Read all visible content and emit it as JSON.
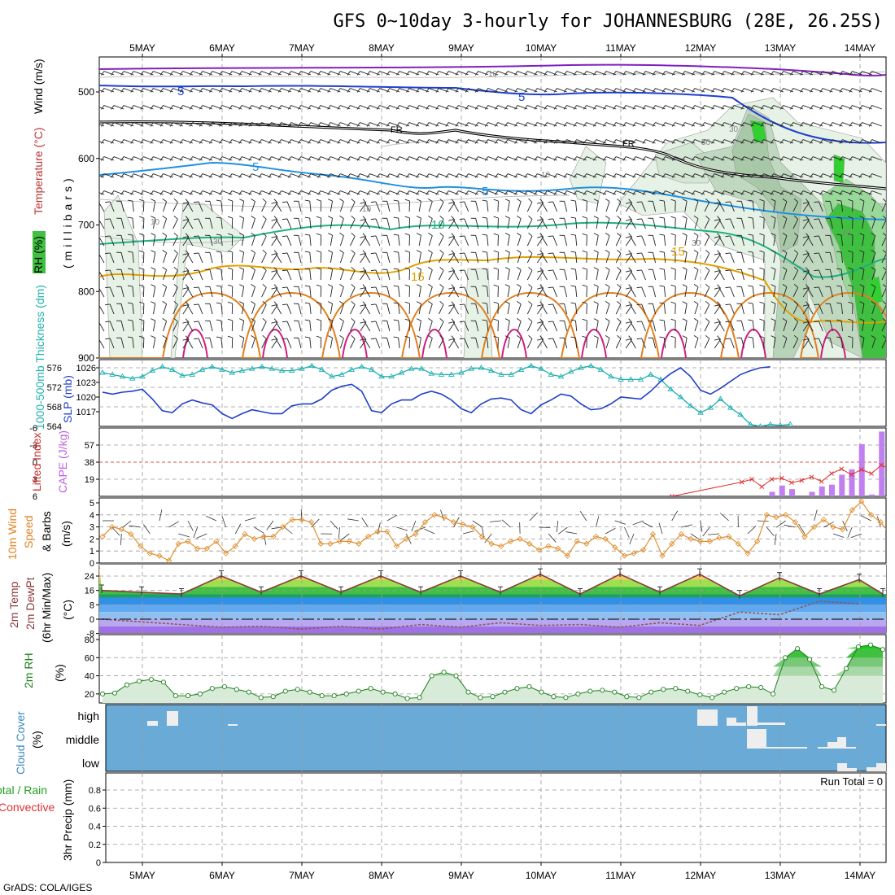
{
  "title": "GFS 0~10day 3-hourly for JOHANNESBURG (28E, 26.25S)",
  "credit": "GrADS: COLA/IGES",
  "days": [
    "5MAY",
    "6MAY",
    "7MAY",
    "8MAY",
    "9MAY",
    "10MAY",
    "11MAY",
    "12MAY",
    "13MAY",
    "14MAY"
  ],
  "panels": {
    "upper_air": {
      "labels": [
        "RH (%)",
        "Temperature (°C)",
        "Wind (m/s)",
        "(millibars)"
      ],
      "yticks": [
        "500",
        "600",
        "700",
        "800",
        "900"
      ]
    },
    "pressure": {
      "labels": [
        "1000-500mb Thickness (dm)",
        "SLP (mb)"
      ],
      "thickness_ticks": [
        "576",
        "572",
        "568",
        "564"
      ],
      "slp_ticks": [
        "1026",
        "1023",
        "1020",
        "1017"
      ]
    },
    "stability": {
      "labels": [
        "Lifted Index",
        "CAPE (J/kg)"
      ],
      "li_ticks": [
        "-6",
        "-3",
        "0",
        "3",
        "6"
      ],
      "cape_ticks": [
        "57",
        "38",
        "19"
      ]
    },
    "wind10m": {
      "labels": [
        "10m Wind",
        "Speed",
        "& Barbs",
        "(m/s)"
      ],
      "yticks": [
        "5",
        "4",
        "3",
        "2",
        "1",
        "0"
      ]
    },
    "temp2m": {
      "labels": [
        "2m Temp",
        "2m DewPt",
        "(6hr Min/Max)",
        "(°C)"
      ],
      "yticks": [
        "24",
        "16",
        "8",
        "0",
        "-8"
      ]
    },
    "rh2m": {
      "labels": [
        "2m RH",
        "(%)"
      ],
      "yticks": [
        "80",
        "60",
        "40",
        "20"
      ]
    },
    "cloud": {
      "labels": [
        "Cloud Cover",
        "(%)"
      ],
      "yticks": [
        "high",
        "middle",
        "low"
      ]
    },
    "precip": {
      "labels": [
        "Total / Rain",
        "Convective",
        "3hr Precip (mm)"
      ],
      "yticks": [
        "0.8",
        "0.6",
        "0.4",
        "0.2",
        "0"
      ],
      "run_total": "Run Total = 0"
    }
  },
  "colors": {
    "thickness": "#20b0b0",
    "slp": "#2040c8",
    "wind": "#e09030",
    "temp_line": "#8b3a3a",
    "dewpt_line": "#8b5a5a",
    "rh_line": "#208020",
    "rh_fill": "#98d098",
    "cloud_bg": "#6aaad6",
    "cape_bar": "#c080f0",
    "li_line": "#e03030",
    "precip_total": "#20c020",
    "precip_conv": "#e03030",
    "t_minus5": "#e0a000",
    "t_15": "#e08020",
    "t_pos": "#d02080",
    "wind5": "#2040d0",
    "t10": "#20b080",
    "t5": "#2090e0",
    "fr": "#000000",
    "t_high": "#8020c0"
  },
  "contour_labels": {
    "upper_wind_5": "5",
    "t5": "5",
    "t10": "10",
    "t15": "15",
    "freeze": "FR",
    "rh10": "10",
    "rh30": "30",
    "rh50": "50",
    "rh70": "70"
  },
  "chart_data": [
    {
      "type": "line",
      "title": "1000-500mb Thickness (dm) / SLP (mb)",
      "x_unit": "3-hourly steps from 5MAY 00Z",
      "series": [
        {
          "name": "1000-500mb Thickness (dm)",
          "values": [
            575,
            574.6,
            574.2,
            573.8,
            574.2,
            575.4,
            576.2,
            575.6,
            574.4,
            574.6,
            575.6,
            576.2,
            575.6,
            575,
            575.4,
            575.8,
            576.2,
            575.8,
            575.4,
            575.4,
            575.8,
            576.4,
            575.6,
            574.2,
            574.6,
            575.6,
            576.2,
            575.6,
            574.2,
            574.2,
            575,
            575.8,
            575.8,
            574.8,
            574.6,
            574.6,
            575,
            575.8,
            576,
            575.4,
            574.6,
            574.6,
            575.6,
            576.4,
            575.8,
            574.6,
            574.2,
            575.2,
            576,
            576.4,
            575.6,
            574.2,
            573.6,
            573.6,
            573.6,
            574.6,
            573.6,
            571.6,
            570,
            568.2,
            566.8,
            567.8,
            569.6,
            567.8,
            566.4,
            564.4,
            564,
            564.4,
            564.2,
            564.4
          ]
        },
        {
          "name": "SLP (mb)",
          "values": [
            1021,
            1020.6,
            1021,
            1021.2,
            1021.6,
            1019.6,
            1017.2,
            1016.8,
            1018.6,
            1019.4,
            1018.8,
            1018.4,
            1016.6,
            1015.6,
            1016.6,
            1017.4,
            1017,
            1016.6,
            1016.6,
            1018.2,
            1018.6,
            1018.6,
            1019.6,
            1021.4,
            1022.2,
            1022.6,
            1021.2,
            1017.2,
            1016.8,
            1018.6,
            1019.4,
            1019.4,
            1020.6,
            1021.2,
            1020.6,
            1019.4,
            1017.6,
            1016.8,
            1018.6,
            1019.6,
            1019.8,
            1019.4,
            1017.4,
            1016.6,
            1018.4,
            1019.4,
            1020.6,
            1020.2,
            1018.6,
            1017.4,
            1017.6,
            1018.6,
            1020,
            1019.8,
            1019.6,
            1021.2,
            1023.2,
            1024.8,
            1026,
            1024.2,
            1021.4,
            1020.6,
            1021.8,
            1023.2,
            1024.6,
            1025.4,
            1026,
            1026.2
          ]
        }
      ],
      "y_ranges": {
        "thickness": [
          564,
          577
        ],
        "slp": [
          1014,
          1027
        ]
      }
    },
    {
      "type": "bar",
      "title": "Lifted Index / CAPE (J/kg)",
      "series": [
        {
          "name": "CAPE (J/kg)",
          "values_by_step": {
            "66": 5,
            "67": 12,
            "68": 8,
            "70": 5,
            "71": 11,
            "72": 13,
            "73": 24,
            "74": 30,
            "75": 58,
            "76": 2,
            "77": 72,
            "78": 11,
            "79": 6
          }
        },
        {
          "name": "Lifted Index",
          "values_by_step": {
            "56": 6,
            "63": 3.5,
            "64": 3,
            "65": 4.3,
            "66": 3,
            "67": 2.8,
            "68": 3.6,
            "69": 3.2,
            "70": 2.6,
            "71": 3.4,
            "72": 2,
            "73": 1.2,
            "74": 2.2,
            "75": 1.3,
            "76": 2,
            "77": 0.5,
            "78": 1.4,
            "79": 0.6
          }
        }
      ],
      "cape_ylim": [
        0,
        76
      ],
      "li_ylim": [
        6,
        -6
      ]
    },
    {
      "type": "line",
      "title": "10m Wind Speed & Barbs (m/s)",
      "ylim": [
        0,
        5
      ],
      "series": [
        {
          "name": "10m Wind Speed",
          "values": [
            2.2,
            3,
            2.8,
            2.4,
            1.4,
            0.8,
            0.6,
            0.2,
            1.6,
            1.8,
            1.2,
            1.2,
            1.8,
            0.8,
            1.4,
            2.4,
            2,
            2.2,
            2.2,
            3,
            3.6,
            3.6,
            3.4,
            1.6,
            1.6,
            1.8,
            1.8,
            1.6,
            2.2,
            2.6,
            2.6,
            1.4,
            2,
            2.4,
            3.4,
            4,
            3.8,
            3.4,
            3.2,
            3,
            2.2,
            1.6,
            1.4,
            1.8,
            2,
            1.6,
            1.1,
            1.4,
            1.2,
            0.6,
            1.8,
            1.6,
            2.2,
            2,
            1.3,
            0.6,
            0.8,
            1.1,
            2.4,
            0.6,
            1.6,
            2.4,
            2,
            1.8,
            1.8,
            2.1,
            2.2,
            1.6,
            0.8,
            1.8,
            4,
            3.8,
            4,
            3.4,
            2.2,
            3,
            3.6,
            3,
            2.8,
            4.4,
            5.1,
            4,
            3.4,
            2.4
          ]
        }
      ]
    },
    {
      "type": "area",
      "title": "2m Temp / 2m DewPt (6hr Min/Max) (°C)",
      "ylim": [
        -9,
        28
      ],
      "series": [
        {
          "name": "2m Temp (daily max)",
          "values": [
            15,
            24,
            24,
            24,
            24,
            25,
            25,
            25,
            23,
            22
          ]
        },
        {
          "name": "2m Temp (daily min)",
          "values": [
            16,
            14,
            15,
            15,
            15,
            15,
            14,
            15,
            13,
            14
          ]
        },
        {
          "name": "2m DewPt",
          "values": [
            0,
            -3,
            -4,
            -4,
            -3,
            -2,
            -3,
            -2,
            4,
            10
          ]
        }
      ]
    },
    {
      "type": "area",
      "title": "2m RH (%)",
      "ylim": [
        10,
        80
      ],
      "series": [
        {
          "name": "2m RH",
          "values": [
            20,
            21,
            30,
            34,
            36,
            33,
            18,
            18,
            20,
            26,
            28,
            25,
            22,
            16,
            17,
            23,
            25,
            22,
            18,
            18,
            20,
            23,
            26,
            22,
            20,
            15,
            16,
            40,
            44,
            40,
            22,
            16,
            17,
            22,
            26,
            28,
            22,
            17,
            16,
            20,
            23,
            24,
            22,
            17,
            16,
            22,
            25,
            26,
            23,
            19,
            16,
            22,
            26,
            28,
            27,
            20,
            60,
            70,
            58,
            28,
            24,
            48,
            72,
            74,
            69
          ]
        }
      ]
    },
    {
      "type": "bar",
      "title": "Cloud Cover (%)",
      "series": [
        {
          "name": "high",
          "values_by_day": {
            "5MAY": "low",
            "12MAY": "high",
            "13MAY": "medium",
            "14MAY": "low"
          }
        },
        {
          "name": "middle",
          "values_by_day": {
            "12MAY": "medium",
            "13MAY": "medium",
            "14MAY": "low"
          }
        },
        {
          "name": "low",
          "values_by_day": {
            "14MAY": "low"
          }
        }
      ]
    },
    {
      "type": "bar",
      "title": "3hr Precip (mm)",
      "ylim": [
        0,
        0.95
      ],
      "series": [
        {
          "name": "Total / Rain",
          "values": []
        },
        {
          "name": "Convective",
          "values": []
        }
      ]
    }
  ]
}
